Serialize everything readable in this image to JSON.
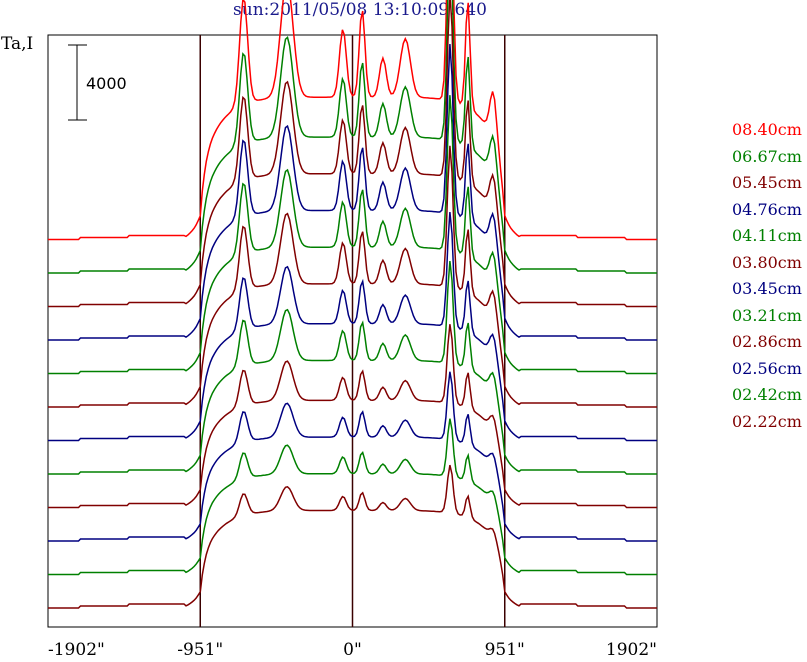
{
  "chart_data": {
    "type": "line",
    "title": "sun:2011/05/08 13:10:09.640",
    "ylabel": "Ta,I",
    "scale_bar_label": "4000",
    "x_ticks": [
      "-1902\"",
      "-951\"",
      "0\"",
      "951\"",
      "1902\""
    ],
    "xlim": [
      -1902,
      1902
    ],
    "vertical_lines": [
      -951,
      0,
      951
    ],
    "series": [
      {
        "name": "08.40cm",
        "color": "#ff0000",
        "offset": 12,
        "peak": 1.0
      },
      {
        "name": "06.67cm",
        "color": "#008000",
        "offset": 11,
        "peak": 0.9
      },
      {
        "name": "05.45cm",
        "color": "#800000",
        "offset": 10,
        "peak": 0.85
      },
      {
        "name": "04.76cm",
        "color": "#000080",
        "offset": 9,
        "peak": 0.8
      },
      {
        "name": "04.11cm",
        "color": "#008000",
        "offset": 8,
        "peak": 0.75
      },
      {
        "name": "03.80cm",
        "color": "#800000",
        "offset": 7,
        "peak": 0.7
      },
      {
        "name": "03.45cm",
        "color": "#000080",
        "offset": 6,
        "peak": 0.6
      },
      {
        "name": "03.21cm",
        "color": "#008000",
        "offset": 5,
        "peak": 0.55
      },
      {
        "name": "02.86cm",
        "color": "#800000",
        "offset": 4,
        "peak": 0.45
      },
      {
        "name": "02.56cm",
        "color": "#000080",
        "offset": 3,
        "peak": 0.4
      },
      {
        "name": "02.42cm",
        "color": "#008000",
        "offset": 2,
        "peak": 0.35
      },
      {
        "name": "02.22cm",
        "color": "#800000",
        "offset": 1,
        "peak": 0.3
      }
    ]
  }
}
